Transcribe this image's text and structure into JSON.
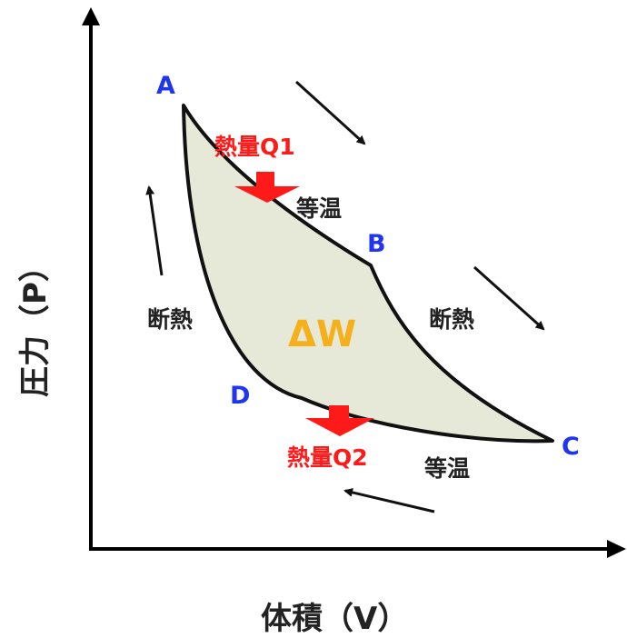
{
  "axes": {
    "y_title": "圧力（P）",
    "x_title": "体積（V）"
  },
  "points": {
    "A": "A",
    "B": "B",
    "C": "C",
    "D": "D"
  },
  "processes": {
    "isothermal_top": "等温",
    "isothermal_bottom": "等温",
    "adiabatic_left": "断熱",
    "adiabatic_right": "断熱"
  },
  "heat": {
    "q1": "熱量Q1",
    "q2": "熱量Q2"
  },
  "work": "ΔW",
  "colors": {
    "point_label": "#1f35f0",
    "heat_label": "#ff1a1a",
    "heat_arrow": "#ff1a1a",
    "work_label": "#f5b01c",
    "cycle_fill": "#e6e9d7",
    "cycle_stroke": "#111111",
    "text": "#222222"
  }
}
